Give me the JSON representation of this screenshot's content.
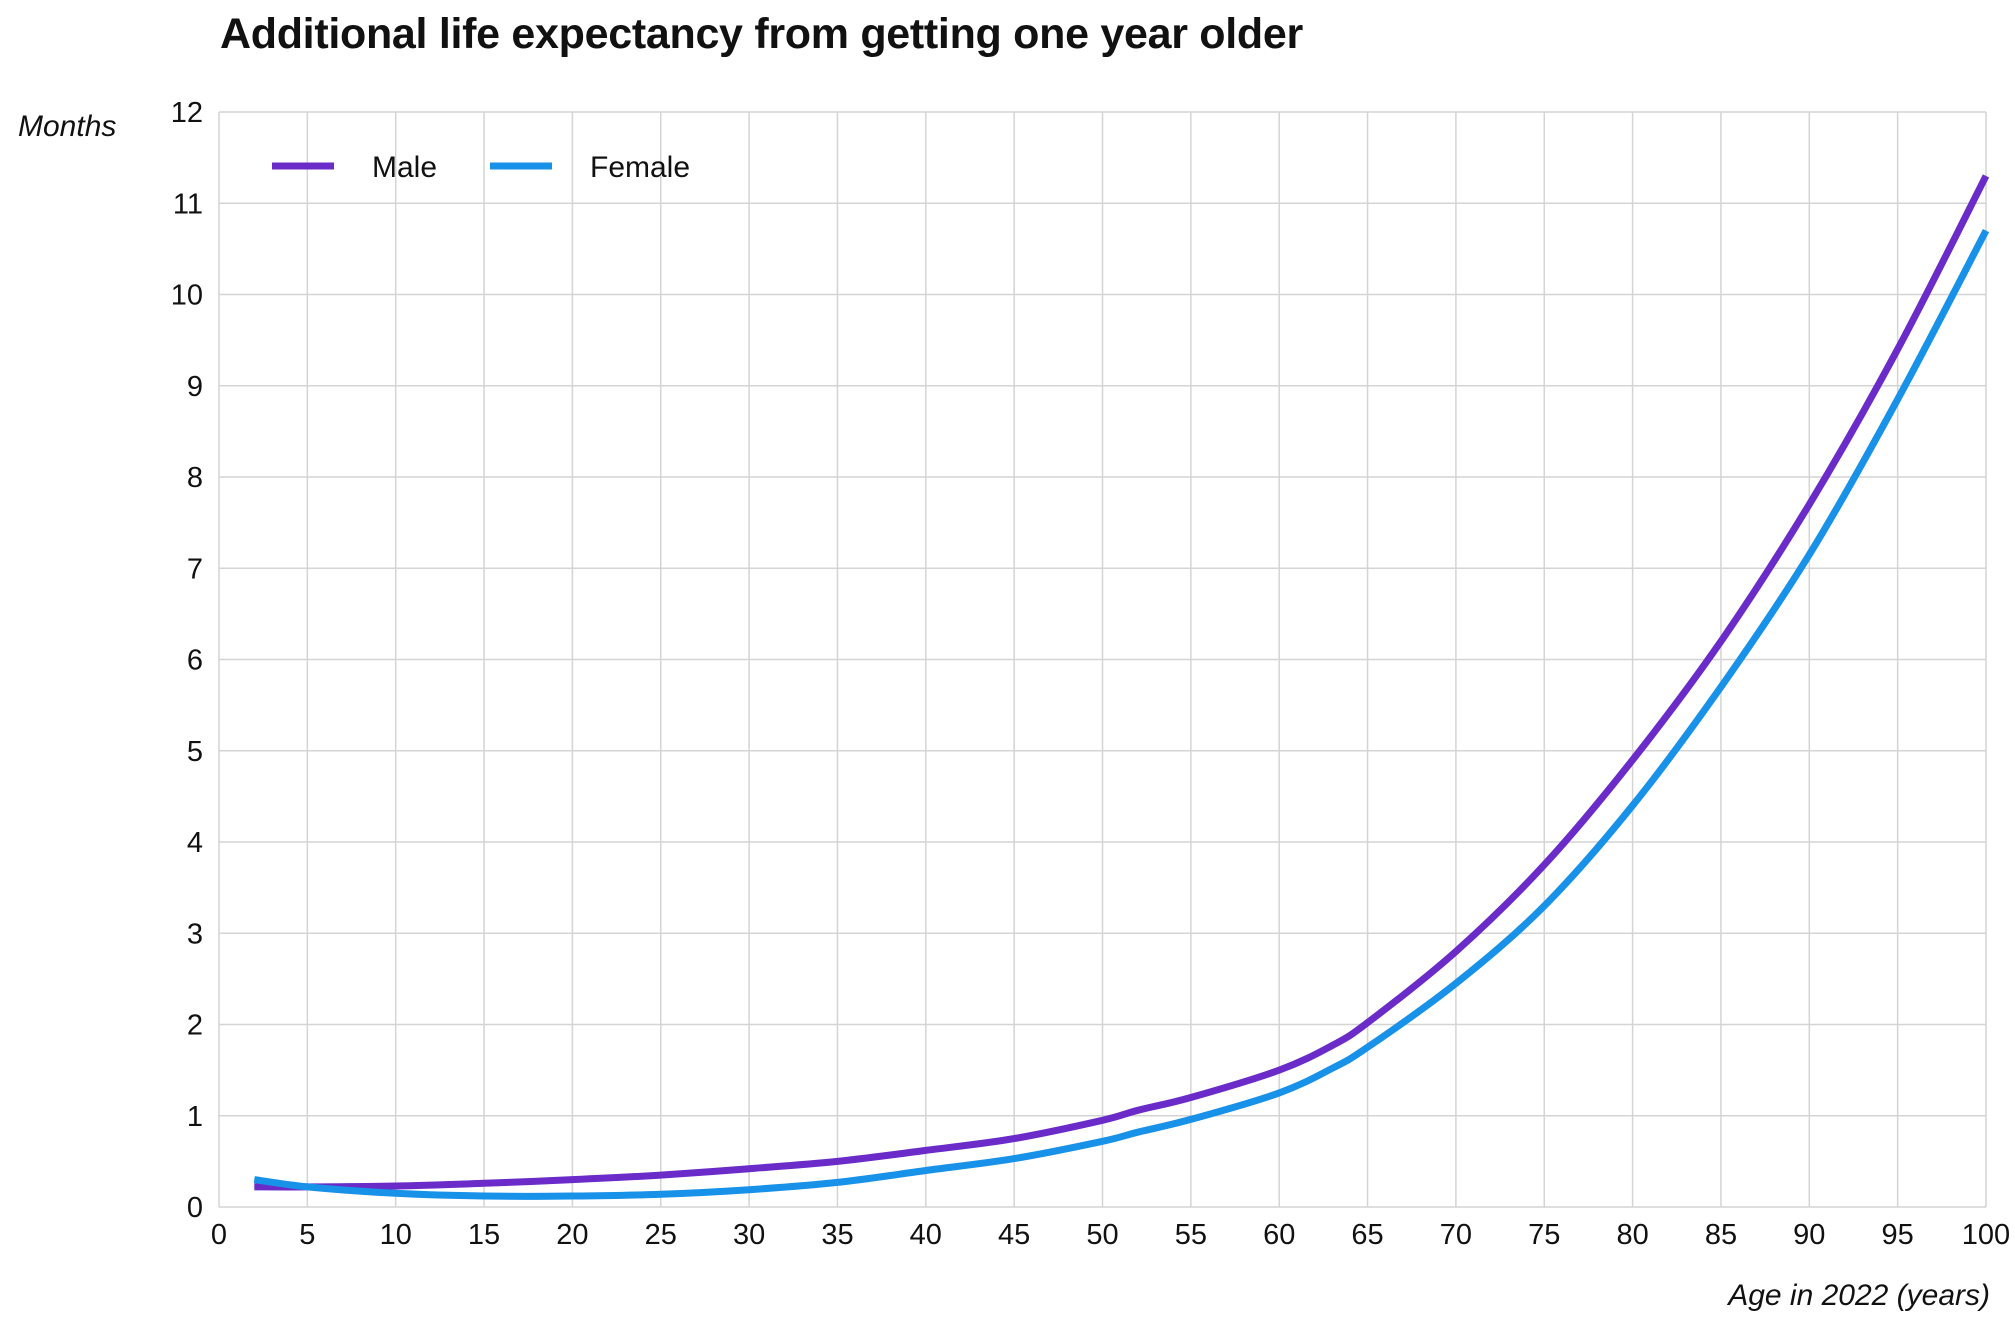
{
  "chart_data": {
    "type": "line",
    "title": "Additional life expectancy from getting one year older",
    "xlabel": "Age in 2022 (years)",
    "ylabel": "Months",
    "xlim": [
      0,
      100
    ],
    "ylim": [
      0,
      12
    ],
    "x_ticks": [
      "0",
      "5",
      "10",
      "15",
      "20",
      "25",
      "30",
      "35",
      "40",
      "45",
      "50",
      "55",
      "60",
      "65",
      "70",
      "75",
      "80",
      "85",
      "90",
      "95",
      "100"
    ],
    "y_ticks": [
      "0",
      "1",
      "2",
      "3",
      "4",
      "5",
      "6",
      "7",
      "8",
      "9",
      "10",
      "11",
      "12"
    ],
    "grid": true,
    "legend_position": "top-left",
    "series": [
      {
        "name": "Male",
        "color": "#6a2bc8",
        "points": [
          [
            2,
            0.22
          ],
          [
            5,
            0.22
          ],
          [
            10,
            0.23
          ],
          [
            15,
            0.26
          ],
          [
            20,
            0.3
          ],
          [
            25,
            0.35
          ],
          [
            30,
            0.42
          ],
          [
            35,
            0.5
          ],
          [
            40,
            0.62
          ],
          [
            45,
            0.75
          ],
          [
            50,
            0.95
          ],
          [
            52,
            1.06
          ],
          [
            55,
            1.2
          ],
          [
            60,
            1.5
          ],
          [
            63,
            1.77
          ],
          [
            65,
            2.02
          ],
          [
            70,
            2.8
          ],
          [
            75,
            3.75
          ],
          [
            80,
            4.9
          ],
          [
            85,
            6.2
          ],
          [
            90,
            7.7
          ],
          [
            95,
            9.4
          ],
          [
            100,
            11.3
          ]
        ]
      },
      {
        "name": "Female",
        "color": "#1891e8",
        "points": [
          [
            2,
            0.3
          ],
          [
            5,
            0.22
          ],
          [
            10,
            0.15
          ],
          [
            15,
            0.12
          ],
          [
            20,
            0.12
          ],
          [
            25,
            0.14
          ],
          [
            30,
            0.19
          ],
          [
            35,
            0.27
          ],
          [
            40,
            0.4
          ],
          [
            45,
            0.53
          ],
          [
            50,
            0.72
          ],
          [
            52,
            0.82
          ],
          [
            55,
            0.96
          ],
          [
            60,
            1.25
          ],
          [
            63,
            1.52
          ],
          [
            65,
            1.75
          ],
          [
            70,
            2.45
          ],
          [
            75,
            3.3
          ],
          [
            80,
            4.4
          ],
          [
            85,
            5.7
          ],
          [
            90,
            7.15
          ],
          [
            95,
            8.85
          ],
          [
            100,
            10.7
          ]
        ]
      }
    ]
  }
}
